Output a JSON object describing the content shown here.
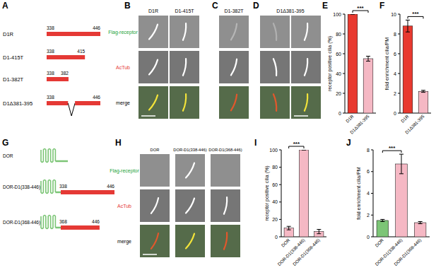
{
  "panel_letters": [
    "A",
    "B",
    "C",
    "D",
    "E",
    "F",
    "G",
    "H",
    "I",
    "J"
  ],
  "constructs_top": [
    {
      "name": "D1R",
      "start": 338,
      "end": 446
    },
    {
      "name": "D1-415T",
      "start": 338,
      "end": 415
    },
    {
      "name": "D1-382T",
      "start": 338,
      "end": 382
    },
    {
      "name": "D1Δ381-395",
      "start": 338,
      "end": 446,
      "deleted": [
        381,
        395
      ]
    }
  ],
  "constructs_bottom": [
    {
      "name": "DOR"
    },
    {
      "name": "DOR-D1(338-446)",
      "start": 338,
      "end": 446
    },
    {
      "name": "DOR-D1(368-446)",
      "start": 368,
      "end": 446
    }
  ],
  "micrographs": {
    "B": {
      "headers": [
        "D1R",
        "D1-415T"
      ],
      "row_labels": [
        "Flag-receptor",
        "AcTub",
        "merge"
      ]
    },
    "C": {
      "headers": [
        "D1-382T"
      ]
    },
    "D": {
      "headers": [
        "D1Δ381-395"
      ]
    },
    "H": {
      "headers": [
        "DOR",
        "DOR-D1(338-446)",
        "DOR-D1(368-446)"
      ],
      "row_labels": [
        "Flag-receptor",
        "AcTub",
        "merge"
      ]
    }
  },
  "chart_data": [
    {
      "type": "bar",
      "ylabel": "receptor positive cilia (%)",
      "categories": [
        "D1R",
        "D1Δ381-395"
      ],
      "values": [
        100,
        55
      ],
      "errors": [
        0,
        2.5
      ],
      "colors": [
        "#e8392f",
        "#f5b8c4"
      ],
      "ylim": [
        0,
        100
      ],
      "yticks": [
        0,
        20,
        40,
        60,
        80,
        100
      ],
      "significance": [
        {
          "text": "***",
          "pair": [
            "D1R",
            "D1Δ381-395"
          ]
        }
      ]
    },
    {
      "type": "bar",
      "ylabel": "fold enrichment cilia/PM",
      "categories": [
        "D1R",
        "D1Δ381-395"
      ],
      "values": [
        8.8,
        2.2
      ],
      "errors": [
        0.6,
        0.1
      ],
      "colors": [
        "#e8392f",
        "#f5b8c4"
      ],
      "ylim": [
        0,
        10
      ],
      "yticks": [
        0,
        2,
        4,
        6,
        8,
        10
      ],
      "significance": [
        {
          "text": "***",
          "pair": [
            "D1R",
            "D1Δ381-395"
          ]
        }
      ]
    },
    {
      "type": "bar",
      "ylabel": "receptor positive cilia (%)",
      "categories": [
        "DOR",
        "DOR-D1(338-446)",
        "DOR-D1(368-446)"
      ],
      "values": [
        10,
        100,
        6
      ],
      "errors": [
        2,
        0,
        2.5
      ],
      "colors": [
        "#f5b8c4",
        "#f5b8c4",
        "#f5b8c4"
      ],
      "ylim": [
        0,
        100
      ],
      "yticks": [
        0,
        20,
        40,
        60,
        80,
        100
      ],
      "significance": [
        {
          "text": "***",
          "pair": [
            "DOR",
            "DOR-D1(338-446)"
          ]
        }
      ]
    },
    {
      "type": "bar",
      "ylabel": "fold enrichment cilia/PM",
      "categories": [
        "DOR",
        "DOR-D1(338-446)",
        "DOR-D1(368-446)"
      ],
      "values": [
        1.5,
        6.7,
        1.3
      ],
      "errors": [
        0.1,
        0.9,
        0.1
      ],
      "colors": [
        "#7cc576",
        "#f5b8c4",
        "#f5b8c4"
      ],
      "ylim": [
        0,
        8
      ],
      "yticks": [
        0,
        2,
        4,
        6,
        8
      ],
      "significance": [
        {
          "text": "***",
          "pair": [
            "DOR",
            "DOR-D1(338-446)"
          ]
        }
      ]
    }
  ]
}
